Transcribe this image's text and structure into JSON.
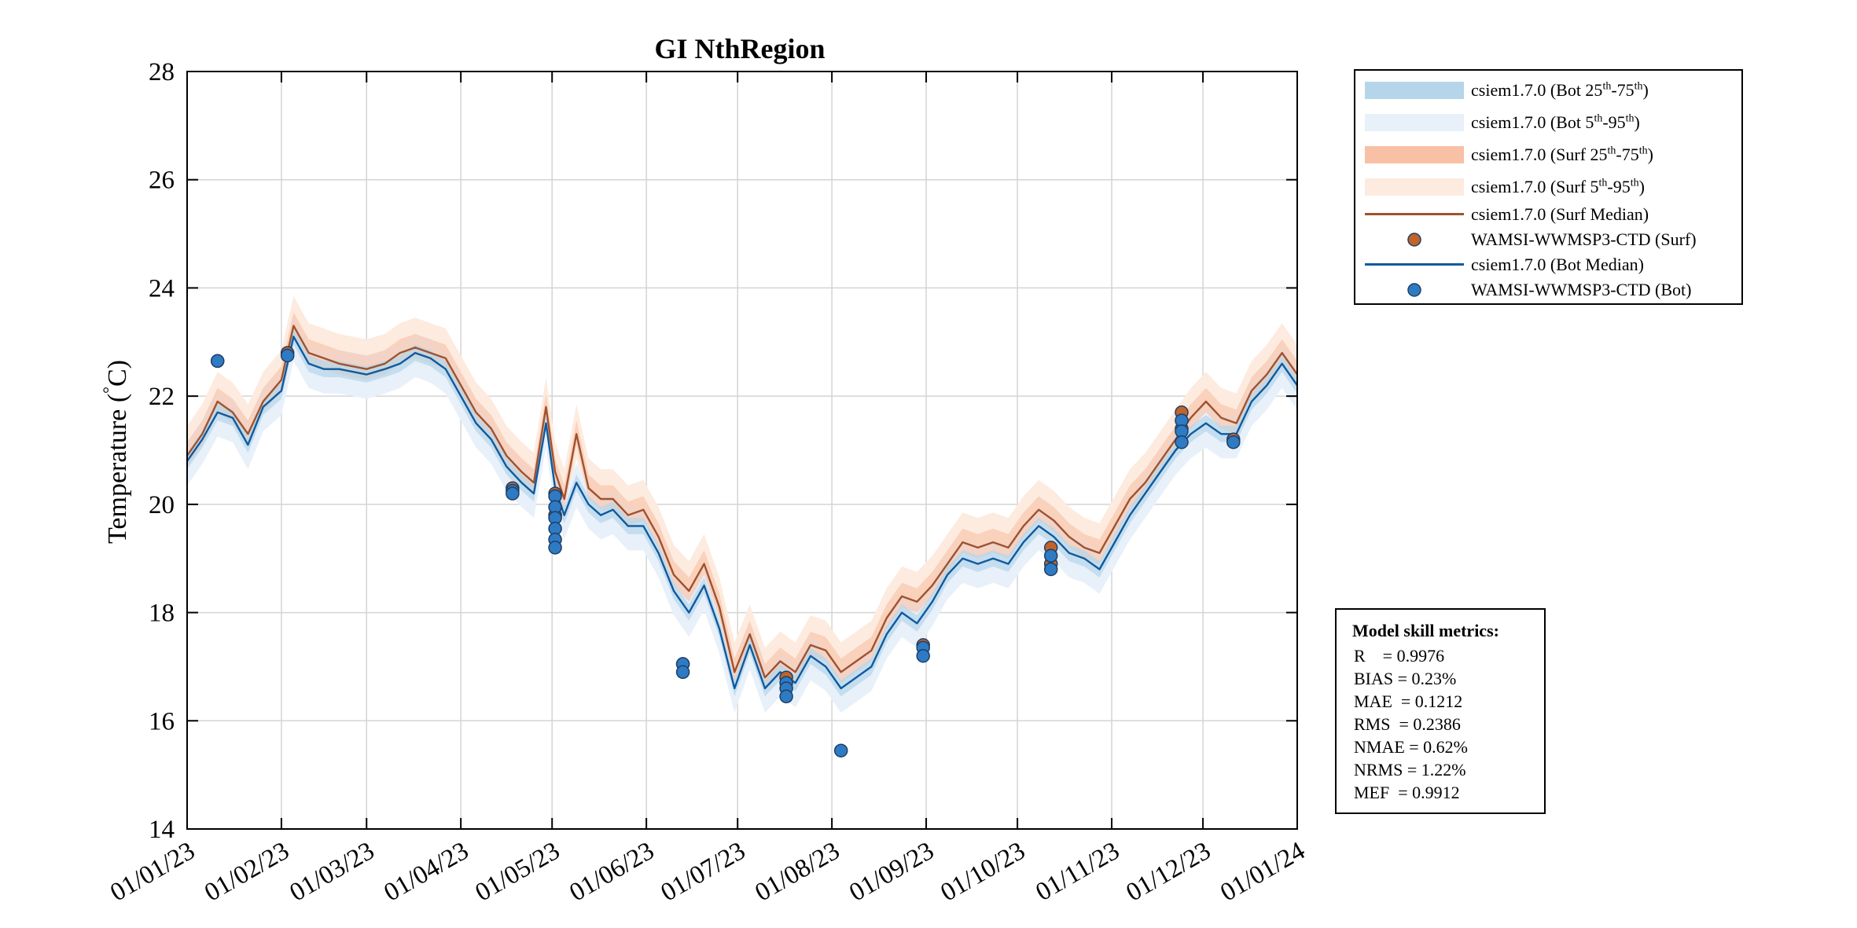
{
  "chart_data": {
    "type": "line",
    "title": "GI NthRegion",
    "ylabel": "Temperature (°C)",
    "ylabel_text": "Temperature (",
    "ylabel_degree": "°",
    "ylabel_unit": "C)",
    "xlabel": "",
    "ylim": [
      14,
      28
    ],
    "yticks": [
      14,
      16,
      18,
      20,
      22,
      24,
      26,
      28
    ],
    "xlim_day": [
      0,
      365
    ],
    "xticks": [
      {
        "label": "01/01/23",
        "day": 0
      },
      {
        "label": "01/02/23",
        "day": 31
      },
      {
        "label": "01/03/23",
        "day": 59
      },
      {
        "label": "01/04/23",
        "day": 90
      },
      {
        "label": "01/05/23",
        "day": 120
      },
      {
        "label": "01/06/23",
        "day": 151
      },
      {
        "label": "01/07/23",
        "day": 181
      },
      {
        "label": "01/08/23",
        "day": 212
      },
      {
        "label": "01/09/23",
        "day": 243
      },
      {
        "label": "01/10/23",
        "day": 273
      },
      {
        "label": "01/11/23",
        "day": 304
      },
      {
        "label": "01/12/23",
        "day": 334
      },
      {
        "label": "01/01/24",
        "day": 365
      }
    ],
    "grid": true,
    "series": [
      {
        "name": "csiem1.7.0 (Surf Median)",
        "color": "#A0522D",
        "x": [
          0,
          5,
          10,
          15,
          20,
          25,
          31,
          35,
          40,
          45,
          50,
          59,
          65,
          70,
          75,
          80,
          85,
          90,
          95,
          100,
          105,
          110,
          114,
          118,
          121,
          124,
          128,
          132,
          136,
          140,
          145,
          150,
          155,
          160,
          165,
          170,
          175,
          180,
          185,
          190,
          195,
          200,
          205,
          210,
          215,
          220,
          225,
          230,
          235,
          240,
          245,
          250,
          255,
          260,
          265,
          270,
          275,
          280,
          285,
          290,
          295,
          300,
          305,
          310,
          315,
          320,
          325,
          330,
          335,
          340,
          345,
          350,
          355,
          360,
          365
        ],
        "values": [
          20.9,
          21.3,
          21.9,
          21.7,
          21.3,
          21.9,
          22.3,
          23.3,
          22.8,
          22.7,
          22.6,
          22.5,
          22.6,
          22.8,
          22.9,
          22.8,
          22.7,
          22.2,
          21.7,
          21.4,
          20.9,
          20.6,
          20.4,
          21.8,
          20.6,
          20.1,
          21.3,
          20.3,
          20.1,
          20.1,
          19.8,
          19.9,
          19.4,
          18.7,
          18.4,
          18.9,
          18.1,
          16.9,
          17.6,
          16.8,
          17.1,
          16.9,
          17.4,
          17.3,
          16.9,
          17.1,
          17.3,
          17.9,
          18.3,
          18.2,
          18.5,
          18.9,
          19.3,
          19.2,
          19.3,
          19.2,
          19.6,
          19.9,
          19.7,
          19.4,
          19.2,
          19.1,
          19.6,
          20.1,
          20.4,
          20.8,
          21.2,
          21.6,
          21.9,
          21.6,
          21.5,
          22.1,
          22.4,
          22.8,
          22.4
        ]
      },
      {
        "name": "csiem1.7.0 (Bot Median)",
        "color": "#0F5A9E",
        "x": [
          0,
          5,
          10,
          15,
          20,
          25,
          31,
          35,
          40,
          45,
          50,
          59,
          65,
          70,
          75,
          80,
          85,
          90,
          95,
          100,
          105,
          110,
          114,
          118,
          121,
          124,
          128,
          132,
          136,
          140,
          145,
          150,
          155,
          160,
          165,
          170,
          175,
          180,
          185,
          190,
          195,
          200,
          205,
          210,
          215,
          220,
          225,
          230,
          235,
          240,
          245,
          250,
          255,
          260,
          265,
          270,
          275,
          280,
          285,
          290,
          295,
          300,
          305,
          310,
          315,
          320,
          325,
          330,
          335,
          340,
          345,
          350,
          355,
          360,
          365
        ],
        "values": [
          20.8,
          21.2,
          21.7,
          21.6,
          21.1,
          21.8,
          22.1,
          23.1,
          22.6,
          22.5,
          22.5,
          22.4,
          22.5,
          22.6,
          22.8,
          22.7,
          22.5,
          22.0,
          21.5,
          21.2,
          20.7,
          20.4,
          20.2,
          21.5,
          20.3,
          19.8,
          20.4,
          20.0,
          19.8,
          19.9,
          19.6,
          19.6,
          19.1,
          18.4,
          18.0,
          18.5,
          17.7,
          16.6,
          17.4,
          16.6,
          16.9,
          16.7,
          17.2,
          17.0,
          16.6,
          16.8,
          17.0,
          17.6,
          18.0,
          17.8,
          18.2,
          18.7,
          19.0,
          18.9,
          19.0,
          18.9,
          19.3,
          19.6,
          19.4,
          19.1,
          19.0,
          18.8,
          19.3,
          19.8,
          20.2,
          20.6,
          21.0,
          21.3,
          21.5,
          21.3,
          21.3,
          21.9,
          22.2,
          22.6,
          22.2
        ]
      }
    ],
    "observations": [
      {
        "name": "WAMSI-WWMSP3-CTD (Surf)",
        "color": "#C0642A",
        "points": [
          [
            10,
            22.65
          ],
          [
            33,
            22.8
          ],
          [
            107,
            20.3
          ],
          [
            121,
            20.2
          ],
          [
            121,
            19.8
          ],
          [
            163,
            17.05
          ],
          [
            197,
            16.8
          ],
          [
            242,
            17.4
          ],
          [
            284,
            19.2
          ],
          [
            284,
            18.9
          ],
          [
            327,
            21.7
          ],
          [
            327,
            21.4
          ],
          [
            344,
            21.2
          ]
        ]
      },
      {
        "name": "WAMSI-WWMSP3-CTD (Bot)",
        "color": "#2E7BC4",
        "points": [
          [
            10,
            22.65
          ],
          [
            33,
            22.75
          ],
          [
            107,
            20.25
          ],
          [
            107,
            20.2
          ],
          [
            121,
            20.15
          ],
          [
            121,
            19.95
          ],
          [
            121,
            19.75
          ],
          [
            121,
            19.55
          ],
          [
            121,
            19.35
          ],
          [
            121,
            19.2
          ],
          [
            163,
            17.05
          ],
          [
            163,
            16.9
          ],
          [
            197,
            16.7
          ],
          [
            197,
            16.6
          ],
          [
            197,
            16.45
          ],
          [
            215,
            15.45
          ],
          [
            242,
            17.35
          ],
          [
            242,
            17.2
          ],
          [
            284,
            19.05
          ],
          [
            284,
            18.8
          ],
          [
            327,
            21.55
          ],
          [
            327,
            21.35
          ],
          [
            327,
            21.15
          ],
          [
            344,
            21.15
          ]
        ]
      }
    ],
    "legend_position": "top-right outside"
  },
  "legend": {
    "items": [
      {
        "label": "csiem1.7.0 (Bot 25",
        "sup1": "th",
        "mid": "-75",
        "sup2": "th",
        "end": ")",
        "swatch": "band",
        "color": "#B5D5EA"
      },
      {
        "label": "csiem1.7.0 (Bot 5",
        "sup1": "th",
        "mid": "-95",
        "sup2": "th",
        "end": ")",
        "swatch": "band",
        "color": "#E8F0FA"
      },
      {
        "label": "csiem1.7.0 (Surf 25",
        "sup1": "th",
        "mid": "-75",
        "sup2": "th",
        "end": ")",
        "swatch": "band",
        "color": "#F8C0A4"
      },
      {
        "label": "csiem1.7.0 (Surf 5",
        "sup1": "th",
        "mid": "-95",
        "sup2": "th",
        "end": ")",
        "swatch": "band",
        "color": "#FDEBDF"
      },
      {
        "label": "csiem1.7.0 (Surf Median)",
        "swatch": "line",
        "color": "#A0522D"
      },
      {
        "label": "WAMSI-WWMSP3-CTD (Surf)",
        "swatch": "marker",
        "color": "#C0642A"
      },
      {
        "label": "csiem1.7.0 (Bot Median)",
        "swatch": "line",
        "color": "#0F5A9E"
      },
      {
        "label": "WAMSI-WWMSP3-CTD (Bot)",
        "swatch": "marker",
        "color": "#2E7BC4"
      }
    ]
  },
  "metrics": {
    "title": "Model skill metrics:",
    "rows": [
      "R    = 0.9976",
      "BIAS = 0.23%",
      "MAE  = 0.1212",
      "RMS  = 0.2386",
      "NMAE = 0.62%",
      "NRMS = 1.22%",
      "MEF  = 0.9912"
    ]
  }
}
